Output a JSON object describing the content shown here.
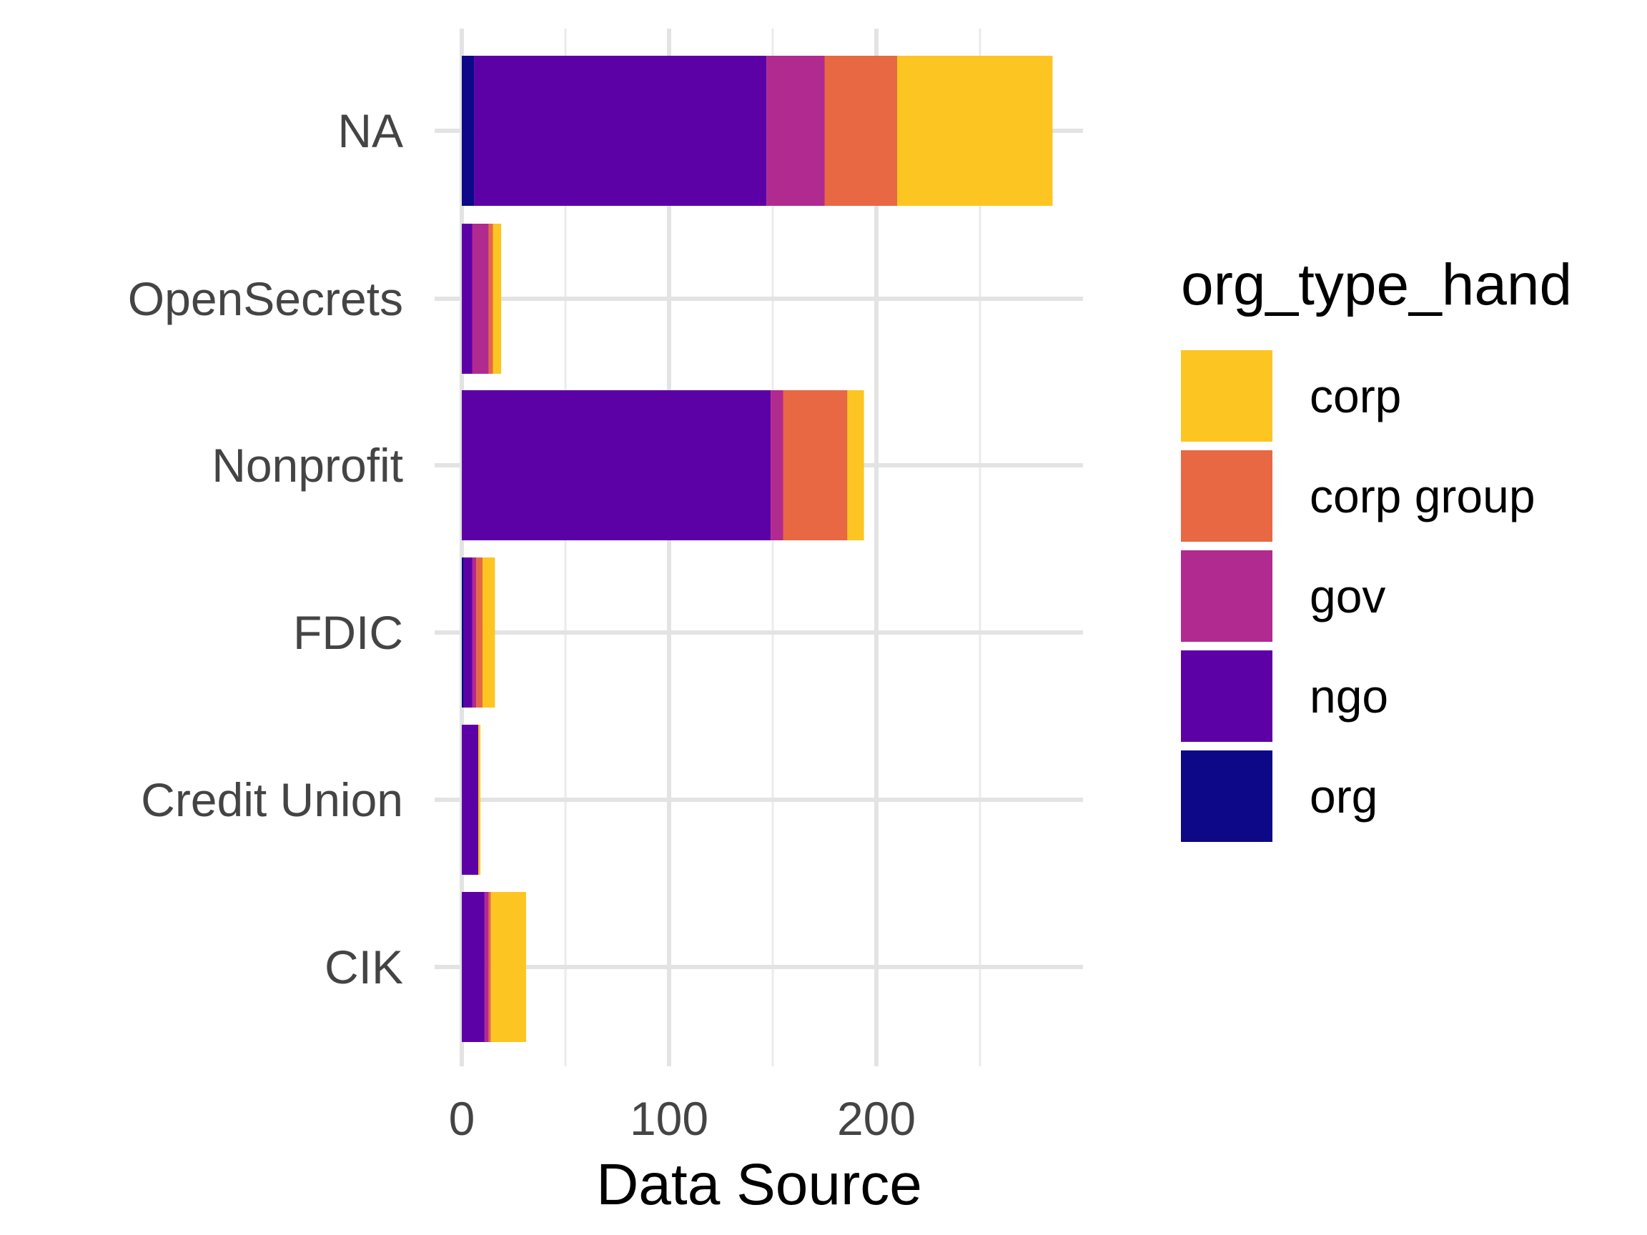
{
  "chart_data": {
    "type": "bar",
    "orientation": "horizontal",
    "stacked": true,
    "title": "",
    "xlabel": "Data Source",
    "ylabel": "",
    "xlim": [
      0,
      285
    ],
    "x_ticks": [
      0,
      100,
      200
    ],
    "x_minor_ticks": [
      50,
      150,
      250
    ],
    "grid": true,
    "legend": {
      "title": "org_type_hand",
      "placement": "right"
    },
    "categories": [
      "NA",
      "OpenSecrets",
      "Nonprofit",
      "FDIC",
      "Credit Union",
      "CIK"
    ],
    "series": [
      {
        "name": "org",
        "color": "#0d0887",
        "values": [
          6,
          0,
          0,
          1,
          0,
          0
        ]
      },
      {
        "name": "ngo",
        "color": "#5c01a6",
        "values": [
          141,
          5,
          149,
          4,
          8,
          11
        ]
      },
      {
        "name": "gov",
        "color": "#b12a90",
        "values": [
          28,
          8,
          6,
          2,
          0,
          2
        ]
      },
      {
        "name": "corp group",
        "color": "#e76843",
        "values": [
          35,
          2,
          31,
          3,
          0,
          1
        ]
      },
      {
        "name": "corp",
        "color": "#fcc522",
        "values": [
          75,
          4,
          8,
          6,
          1,
          17
        ]
      }
    ],
    "legend_order": [
      "corp",
      "corp group",
      "gov",
      "ngo",
      "org"
    ]
  }
}
